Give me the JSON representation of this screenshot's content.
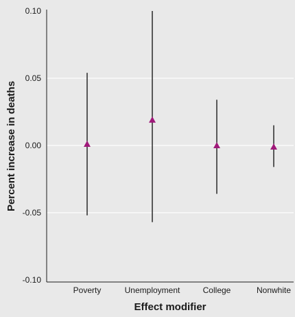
{
  "chart_data": {
    "type": "scatter",
    "title": "",
    "xlabel": "Effect modifier",
    "ylabel": "Percent increase in deaths",
    "ylim": [
      -0.1,
      0.1
    ],
    "yticks": [
      "0.10",
      "0.05",
      "0.00",
      "-0.05",
      "-0.10"
    ],
    "grid": true,
    "categories": [
      "Poverty",
      "Unemployment",
      "College",
      "Nonwhite"
    ],
    "values": [
      0.001,
      0.019,
      0.0,
      -0.001
    ],
    "lower": [
      -0.052,
      -0.057,
      -0.036,
      -0.016
    ],
    "upper": [
      0.054,
      0.1,
      0.034,
      0.015
    ],
    "marker": "triangle",
    "colors": {
      "marker": "#a0197a",
      "background": "#e9e9e9",
      "grid": "#ffffff",
      "axis": "#1a1a1a"
    }
  }
}
